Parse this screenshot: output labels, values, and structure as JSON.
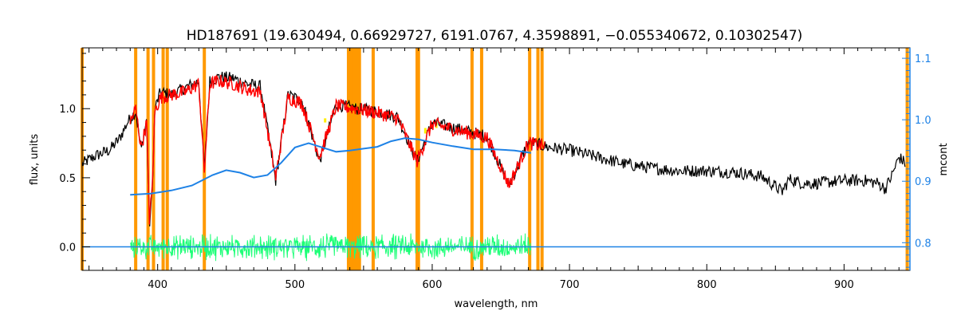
{
  "chart_data": {
    "type": "line",
    "title": "HD187691    (19.630494, 0.66929727, 6191.0767, 4.3598891, −0.055340672, 0.10302547)",
    "xlabel": "wavelength, nm",
    "ylabel": "flux, units",
    "y2label": "mcont",
    "xlim": [
      345,
      948
    ],
    "ylim": [
      -0.17,
      1.44
    ],
    "y2lim": [
      0.755,
      1.117
    ],
    "x_ticks": [
      400,
      500,
      600,
      700,
      800,
      900
    ],
    "y_ticks": [
      0.0,
      0.5,
      1.0
    ],
    "y2_ticks": [
      0.8,
      0.9,
      1.0,
      1.1
    ],
    "grid": false,
    "colors": {
      "observed": "#000000",
      "model": "#ff0000",
      "continuum": "#1e82e6",
      "residuals": "#1eff78",
      "masks": "#ff9900",
      "highlight": "#ffee00",
      "right_axis": "#1e82e6"
    },
    "mask_lines_nm": [
      345,
      384,
      393,
      397,
      404,
      407,
      434,
      539,
      541,
      543,
      545,
      547,
      557,
      589,
      590,
      629,
      636,
      671,
      677,
      680,
      946
    ],
    "series": [
      {
        "key": "observed",
        "color": "#000000",
        "x": [
          345,
          355,
          365,
          372,
          378,
          384,
          388,
          392,
          394,
          396,
          398,
          402,
          410,
          420,
          430,
          434,
          438,
          445,
          455,
          465,
          475,
          486,
          495,
          505,
          518,
          530,
          545,
          560,
          575,
          589,
          600,
          620,
          640,
          656,
          670,
          685,
          700,
          720,
          740,
          760,
          780,
          800,
          820,
          840,
          855,
          860,
          870,
          880,
          900,
          915,
          925,
          930,
          935,
          940,
          945
        ],
        "y": [
          0.6,
          0.66,
          0.7,
          0.78,
          0.9,
          0.98,
          0.7,
          0.92,
          0.15,
          0.4,
          1.0,
          1.12,
          1.1,
          1.15,
          1.2,
          0.55,
          1.2,
          1.23,
          1.22,
          1.18,
          1.16,
          0.48,
          1.1,
          1.06,
          0.62,
          1.03,
          1.0,
          0.98,
          0.94,
          0.62,
          0.9,
          0.85,
          0.8,
          0.44,
          0.76,
          0.72,
          0.7,
          0.65,
          0.6,
          0.57,
          0.55,
          0.55,
          0.54,
          0.51,
          0.4,
          0.49,
          0.46,
          0.46,
          0.48,
          0.48,
          0.46,
          0.42,
          0.52,
          0.65,
          0.6
        ]
      },
      {
        "key": "model",
        "color": "#ff0000",
        "x": [
          380,
          384,
          388,
          392,
          394,
          396,
          398,
          402,
          410,
          420,
          430,
          434,
          438,
          445,
          455,
          465,
          475,
          486,
          495,
          505,
          518,
          530,
          545,
          560,
          575,
          589,
          600,
          620,
          640,
          656,
          670,
          682
        ],
        "y": [
          0.9,
          1.0,
          0.72,
          0.9,
          0.2,
          0.42,
          0.98,
          1.08,
          1.1,
          1.12,
          1.18,
          0.55,
          1.18,
          1.2,
          1.18,
          1.14,
          1.12,
          0.5,
          1.08,
          1.04,
          0.65,
          1.02,
          1.0,
          0.97,
          0.93,
          0.62,
          0.89,
          0.84,
          0.79,
          0.45,
          0.75,
          0.73
        ]
      },
      {
        "key": "continuum",
        "axis": "right",
        "color": "#1e82e6",
        "x": [
          380,
          395,
          410,
          425,
          440,
          450,
          460,
          470,
          480,
          490,
          500,
          510,
          520,
          530,
          540,
          550,
          560,
          570,
          580,
          590,
          600,
          615,
          630,
          645,
          660,
          672
        ],
        "y": [
          0.878,
          0.88,
          0.885,
          0.893,
          0.91,
          0.918,
          0.914,
          0.906,
          0.91,
          0.93,
          0.955,
          0.962,
          0.955,
          0.948,
          0.95,
          0.953,
          0.956,
          0.965,
          0.97,
          0.968,
          0.963,
          0.957,
          0.952,
          0.952,
          0.95,
          0.946
        ]
      },
      {
        "key": "residuals",
        "color": "#1eff78",
        "x": [
          380,
          672
        ],
        "y": [
          0.0,
          0.0
        ],
        "scatter_amplitude": 0.07
      },
      {
        "key": "zero-line",
        "color": "#1e82e6",
        "x": [
          345,
          948
        ],
        "y": [
          0.0,
          0.0
        ]
      }
    ]
  }
}
